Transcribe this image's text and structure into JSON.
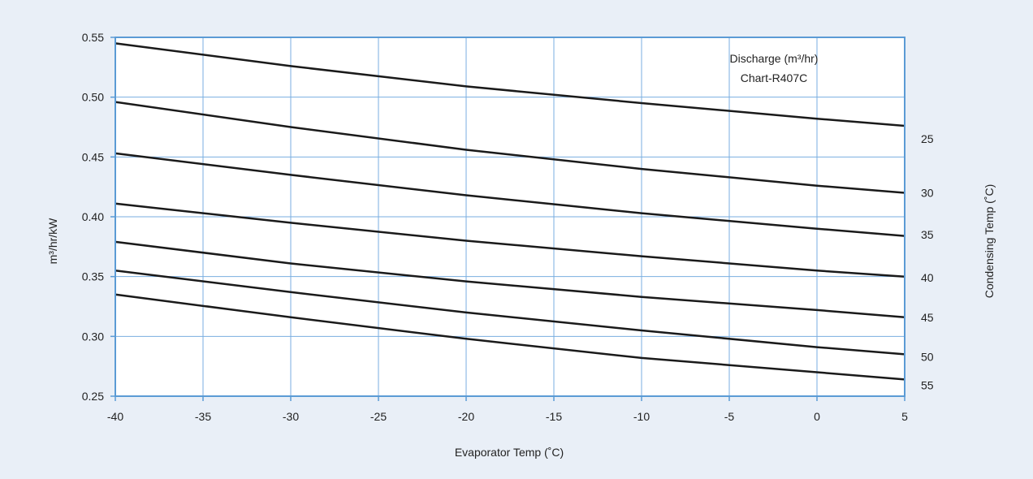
{
  "chart_data": {
    "type": "line",
    "title": "Discharge (m³/hr)",
    "subtitle": "Chart-R407C",
    "xlabel": "Evaporator Temp (˚C)",
    "ylabel": "m³/hr/kW",
    "right_label": "Condensing Temp (˚C)",
    "xlim": [
      -40,
      5
    ],
    "ylim": [
      0.25,
      0.55
    ],
    "x_ticks": [
      -40,
      -35,
      -30,
      -25,
      -20,
      -15,
      -10,
      -5,
      0,
      5
    ],
    "x_tick_labels": [
      "-40",
      "-35",
      "-30",
      "-25",
      "-20",
      "-15",
      "-10",
      "-5",
      "0",
      "5"
    ],
    "y_ticks": [
      0.25,
      0.3,
      0.35,
      0.4,
      0.45,
      0.5,
      0.55
    ],
    "y_tick_labels": [
      "0.25",
      "0.30",
      "0.35",
      "0.40",
      "0.45",
      "0.50",
      "0.55"
    ],
    "grid": true,
    "series": [
      {
        "name": "25",
        "label_y": 0.465,
        "x": [
          -40,
          -30,
          -20,
          -10,
          0,
          5
        ],
        "values": [
          0.545,
          0.526,
          0.509,
          0.495,
          0.482,
          0.476
        ]
      },
      {
        "name": "30",
        "label_y": 0.42,
        "x": [
          -40,
          -30,
          -20,
          -10,
          0,
          5
        ],
        "values": [
          0.496,
          0.475,
          0.456,
          0.44,
          0.426,
          0.42
        ]
      },
      {
        "name": "35",
        "label_y": 0.385,
        "x": [
          -40,
          -30,
          -20,
          -10,
          0,
          5
        ],
        "values": [
          0.453,
          0.435,
          0.418,
          0.403,
          0.39,
          0.384
        ]
      },
      {
        "name": "40",
        "label_y": 0.349,
        "x": [
          -40,
          -30,
          -20,
          -10,
          0,
          5
        ],
        "values": [
          0.411,
          0.395,
          0.38,
          0.367,
          0.355,
          0.35
        ]
      },
      {
        "name": "45",
        "label_y": 0.316,
        "x": [
          -40,
          -30,
          -20,
          -10,
          0,
          5
        ],
        "values": [
          0.379,
          0.361,
          0.346,
          0.333,
          0.322,
          0.316
        ]
      },
      {
        "name": "50",
        "label_y": 0.283,
        "x": [
          -40,
          -30,
          -20,
          -10,
          0,
          5
        ],
        "values": [
          0.355,
          0.337,
          0.32,
          0.305,
          0.291,
          0.285
        ]
      },
      {
        "name": "55",
        "label_y": 0.259,
        "x": [
          -40,
          -30,
          -20,
          -10,
          0,
          5
        ],
        "values": [
          0.335,
          0.316,
          0.298,
          0.282,
          0.27,
          0.264
        ]
      }
    ],
    "colors": {
      "background": "#e9eff7",
      "plot_background": "#ffffff",
      "grid": "#7aaee0",
      "frame": "#5b9bd5",
      "line": "#1a1a1a",
      "text": "#222222"
    }
  }
}
